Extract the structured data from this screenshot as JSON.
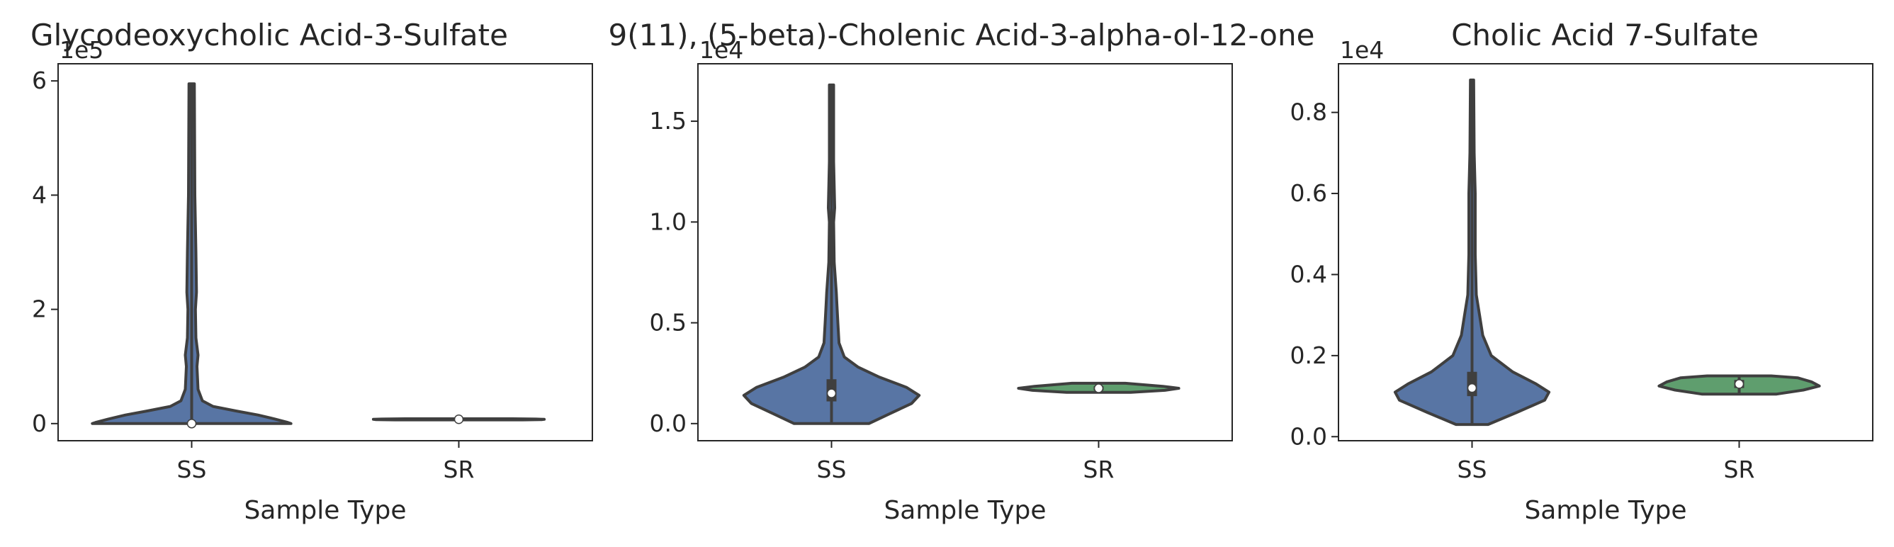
{
  "chart_data": [
    {
      "type": "violin",
      "title": "Glycodeoxycholic Acid-3-Sulfate",
      "xlabel": "Sample Type",
      "ylabel": "",
      "categories": [
        "SS",
        "SR"
      ],
      "y_offset_label": "1e5",
      "ylim": [
        -0.3,
        6.3
      ],
      "yticks": [
        0,
        2,
        4,
        6
      ],
      "ytick_labels": [
        "0",
        "2",
        "4",
        "6"
      ],
      "colors": [
        "#5875a4",
        "#5f9e6e"
      ],
      "violins": [
        {
          "category": "SS",
          "min": 0.0,
          "max": 5.95,
          "q1": 0.0,
          "median": 0.0,
          "q3": 0.02,
          "profile": [
            [
              0.0,
              0.93
            ],
            [
              0.02,
              0.9
            ],
            [
              0.08,
              0.78
            ],
            [
              0.15,
              0.62
            ],
            [
              0.22,
              0.42
            ],
            [
              0.3,
              0.2
            ],
            [
              0.4,
              0.1
            ],
            [
              0.6,
              0.06
            ],
            [
              1.0,
              0.05
            ],
            [
              1.2,
              0.06
            ],
            [
              1.5,
              0.04
            ],
            [
              2.0,
              0.035
            ],
            [
              2.3,
              0.045
            ],
            [
              3.0,
              0.04
            ],
            [
              4.0,
              0.03
            ],
            [
              5.95,
              0.025
            ]
          ]
        },
        {
          "category": "SR",
          "min": 0.065,
          "max": 0.085,
          "q1": 0.068,
          "median": 0.075,
          "q3": 0.08,
          "profile": [
            [
              0.065,
              0.6
            ],
            [
              0.07,
              0.78
            ],
            [
              0.075,
              0.8
            ],
            [
              0.08,
              0.72
            ],
            [
              0.085,
              0.5
            ]
          ]
        }
      ]
    },
    {
      "type": "violin",
      "title": "9(11), (5-beta)-Cholenic Acid-3-alpha-ol-12-one",
      "xlabel": "Sample Type",
      "ylabel": "",
      "categories": [
        "SS",
        "SR"
      ],
      "y_offset_label": "1e4",
      "ylim": [
        -0.085,
        1.785
      ],
      "yticks": [
        0.0,
        0.5,
        1.0,
        1.5
      ],
      "ytick_labels": [
        "0.0",
        "0.5",
        "1.0",
        "1.5"
      ],
      "colors": [
        "#5875a4",
        "#5f9e6e"
      ],
      "violins": [
        {
          "category": "SS",
          "min": 0.0,
          "max": 1.68,
          "q1": 0.11,
          "median": 0.15,
          "q3": 0.22,
          "profile": [
            [
              0.0,
              0.35
            ],
            [
              0.05,
              0.55
            ],
            [
              0.1,
              0.75
            ],
            [
              0.14,
              0.82
            ],
            [
              0.18,
              0.7
            ],
            [
              0.23,
              0.45
            ],
            [
              0.28,
              0.25
            ],
            [
              0.33,
              0.12
            ],
            [
              0.4,
              0.07
            ],
            [
              0.5,
              0.06
            ],
            [
              0.6,
              0.05
            ],
            [
              0.65,
              0.045
            ],
            [
              0.8,
              0.025
            ],
            [
              1.0,
              0.02
            ],
            [
              1.07,
              0.03
            ],
            [
              1.3,
              0.02
            ],
            [
              1.68,
              0.02
            ]
          ]
        },
        {
          "category": "SR",
          "min": 0.155,
          "max": 0.2,
          "q1": 0.165,
          "median": 0.175,
          "q3": 0.185,
          "profile": [
            [
              0.155,
              0.3
            ],
            [
              0.165,
              0.62
            ],
            [
              0.175,
              0.75
            ],
            [
              0.185,
              0.6
            ],
            [
              0.2,
              0.25
            ]
          ]
        }
      ]
    },
    {
      "type": "violin",
      "title": "Cholic Acid 7-Sulfate",
      "xlabel": "Sample Type",
      "ylabel": "",
      "categories": [
        "SS",
        "SR"
      ],
      "y_offset_label": "1e4",
      "ylim": [
        -0.01,
        0.92
      ],
      "yticks": [
        0.0,
        0.2,
        0.4,
        0.6,
        0.8
      ],
      "ytick_labels": [
        "0.0",
        "0.2",
        "0.4",
        "0.6",
        "0.8"
      ],
      "colors": [
        "#5875a4",
        "#5f9e6e"
      ],
      "violins": [
        {
          "category": "SS",
          "min": 0.03,
          "max": 0.88,
          "q1": 0.1,
          "median": 0.12,
          "q3": 0.16,
          "profile": [
            [
              0.03,
              0.15
            ],
            [
              0.06,
              0.42
            ],
            [
              0.09,
              0.68
            ],
            [
              0.11,
              0.72
            ],
            [
              0.13,
              0.6
            ],
            [
              0.16,
              0.38
            ],
            [
              0.2,
              0.18
            ],
            [
              0.25,
              0.1
            ],
            [
              0.3,
              0.07
            ],
            [
              0.35,
              0.04
            ],
            [
              0.45,
              0.03
            ],
            [
              0.6,
              0.03
            ],
            [
              0.7,
              0.02
            ],
            [
              0.88,
              0.015
            ]
          ]
        },
        {
          "category": "SR",
          "min": 0.105,
          "max": 0.15,
          "q1": 0.12,
          "median": 0.13,
          "q3": 0.14,
          "profile": [
            [
              0.105,
              0.35
            ],
            [
              0.115,
              0.6
            ],
            [
              0.125,
              0.75
            ],
            [
              0.135,
              0.68
            ],
            [
              0.145,
              0.55
            ],
            [
              0.15,
              0.3
            ]
          ]
        }
      ]
    }
  ]
}
